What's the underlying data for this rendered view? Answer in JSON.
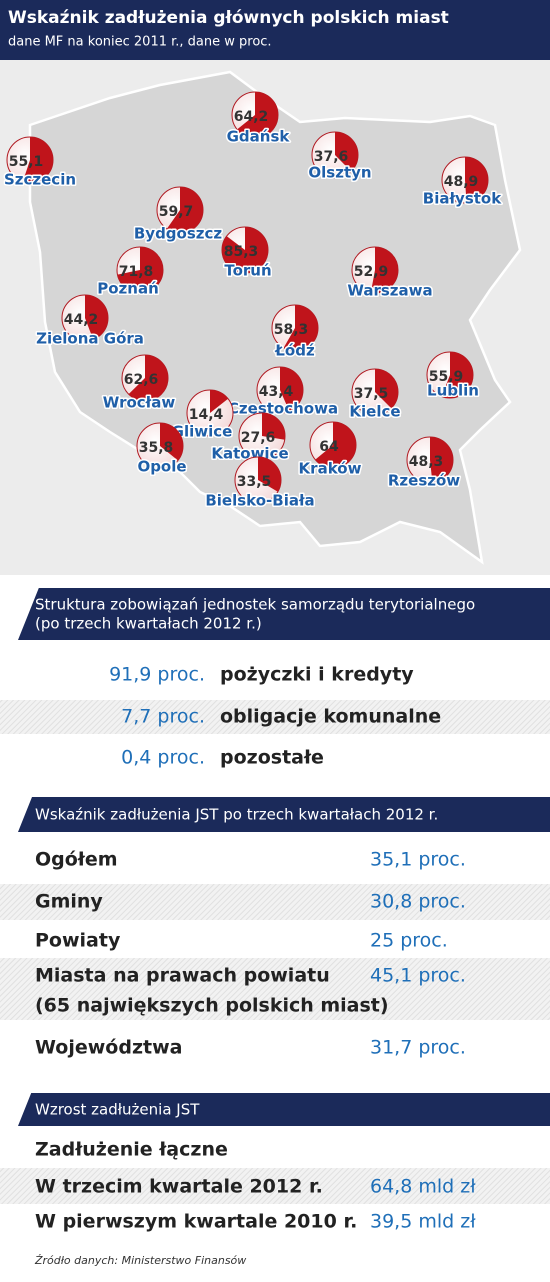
{
  "header": {
    "title": "Wskaźnik zadłużenia głównych polskich miast",
    "subtitle": "dane MF na koniec 2011 r., dane w proc."
  },
  "map": {
    "cities": [
      {
        "name": "Gdańsk",
        "value": 64.2,
        "label": "64,2"
      },
      {
        "name": "Szczecin",
        "value": 55.1,
        "label": "55,1"
      },
      {
        "name": "Olsztyn",
        "value": 37.6,
        "label": "37,6"
      },
      {
        "name": "Białystok",
        "value": 48.9,
        "label": "48,9"
      },
      {
        "name": "Bydgoszcz",
        "value": 59.7,
        "label": "59,7"
      },
      {
        "name": "Toruń",
        "value": 85.3,
        "label": "85,3"
      },
      {
        "name": "Warszawa",
        "value": 52.9,
        "label": "52,9"
      },
      {
        "name": "Poznań",
        "value": 71.8,
        "label": "71,8"
      },
      {
        "name": "Zielona Góra",
        "value": 44.2,
        "label": "44,2"
      },
      {
        "name": "Łódź",
        "value": 58.3,
        "label": "58,3"
      },
      {
        "name": "Lublin",
        "value": 55.9,
        "label": "55,9"
      },
      {
        "name": "Wrocław",
        "value": 62.6,
        "label": "62,6"
      },
      {
        "name": "Częstochowa",
        "value": 43.4,
        "label": "43,4"
      },
      {
        "name": "Kielce",
        "value": 37.5,
        "label": "37,5"
      },
      {
        "name": "Gliwice",
        "value": 14.4,
        "label": "14,4"
      },
      {
        "name": "Katowice",
        "value": 27.6,
        "label": "27,6"
      },
      {
        "name": "Kraków",
        "value": 64
      },
      {
        "name": "Rzeszów",
        "value": 48.3,
        "label": "48,3"
      },
      {
        "name": "Opole",
        "value": 35.8,
        "label": "35,8"
      },
      {
        "name": "Bielsko-Biała",
        "value": 33.5,
        "label": "33,5"
      }
    ]
  },
  "structure": {
    "title": "Struktura zobowiązań jednostek samorządu terytorialnego",
    "subtitle": "(po trzech kwartałach 2012 r.)",
    "rows": [
      {
        "value": "91,9 proc.",
        "label": "pożyczki i kredyty"
      },
      {
        "value": "7,7 proc.",
        "label": "obligacje komunalne"
      },
      {
        "value": "0,4 proc.",
        "label": "pozostałe"
      }
    ]
  },
  "ratio": {
    "title": "Wskaźnik zadłużenia JST po trzech kwartałach 2012 r.",
    "rows": [
      {
        "label": "Ogółem",
        "value": "35,1 proc."
      },
      {
        "label": "Gminy",
        "value": "30,8 proc."
      },
      {
        "label": "Powiaty",
        "value": "25 proc."
      },
      {
        "label": "Miasta na prawach powiatu",
        "label2": "(65 największych polskich miast)",
        "value": "45,1 proc."
      },
      {
        "label": "Województwa",
        "value": "31,7 proc."
      }
    ]
  },
  "growth": {
    "title": "Wzrost zadłużenia JST",
    "rows": [
      {
        "label": "Zadłużenie łączne"
      },
      {
        "label": "W trzecim kwartale 2012 r.",
        "value": "64,8 mld zł"
      },
      {
        "label": "W pierwszym kwartale 2010 r.",
        "value": "39,5 mld zł"
      }
    ]
  },
  "source": "Źródło danych: Ministerstwo Finansów"
}
